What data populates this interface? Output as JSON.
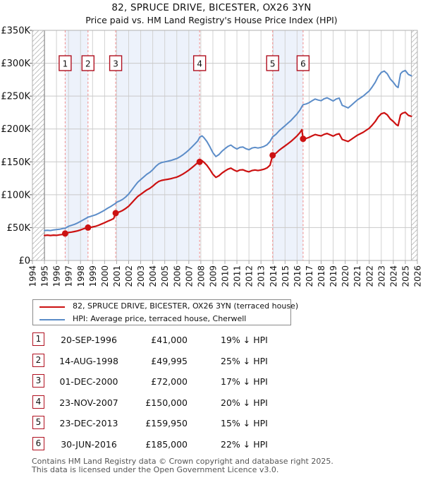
{
  "page": {
    "title": "82, SPRUCE DRIVE, BICESTER, OX26 3YN",
    "subtitle": "Price paid vs. HM Land Registry's House Price Index (HPI)",
    "footer_line1": "Contains HM Land Registry data © Crown copyright and database right 2025.",
    "footer_line2": "This data is licensed under the Open Government Licence v3.0."
  },
  "colors": {
    "price_line": "#cc1111",
    "hpi_line": "#5b8cc8",
    "band": "#edf2fb",
    "grid": "#d2d2d2",
    "grid_h": "#c9c9c9",
    "plot_border": "#b0b0b0",
    "hpi_start_line": "#8a8a8a",
    "hatch_line": "#b8b8b8",
    "sale_dash": "#f08a8a",
    "marker_box_border": "#b01020",
    "axis_text": "#111111",
    "footer_text": "#555555"
  },
  "legend": {
    "items": [
      {
        "label": "82, SPRUCE DRIVE, BICESTER, OX26 3YN (terraced house)",
        "series": "price"
      },
      {
        "label": "HPI: Average price, terraced house, Cherwell",
        "series": "hpi"
      }
    ]
  },
  "sales_table": {
    "rows": [
      {
        "n": "1",
        "date": "20-SEP-1996",
        "price": "£41,000",
        "vs_hpi": "19% ↓ HPI"
      },
      {
        "n": "2",
        "date": "14-AUG-1998",
        "price": "£49,995",
        "vs_hpi": "25% ↓ HPI"
      },
      {
        "n": "3",
        "date": "01-DEC-2000",
        "price": "£72,000",
        "vs_hpi": "17% ↓ HPI"
      },
      {
        "n": "4",
        "date": "23-NOV-2007",
        "price": "£150,000",
        "vs_hpi": "20% ↓ HPI"
      },
      {
        "n": "5",
        "date": "23-DEC-2013",
        "price": "£159,950",
        "vs_hpi": "15% ↓ HPI"
      },
      {
        "n": "6",
        "date": "30-JUN-2016",
        "price": "£185,000",
        "vs_hpi": "22% ↓ HPI"
      }
    ]
  },
  "chart_data": {
    "type": "line",
    "units": "GBP thousands",
    "x_range": [
      1994,
      2026
    ],
    "y_max_k": 350,
    "y_ticks": [
      {
        "label": "£350K",
        "value": 350
      },
      {
        "label": "£300K",
        "value": 300
      },
      {
        "label": "£250K",
        "value": 250
      },
      {
        "label": "£200K",
        "value": 200
      },
      {
        "label": "£150K",
        "value": 150
      },
      {
        "label": "£100K",
        "value": 100
      },
      {
        "label": "£50K",
        "value": 50
      },
      {
        "label": "£0",
        "value": 0
      }
    ],
    "hatch_regions": [
      [
        1994,
        1995
      ],
      [
        2025.5,
        2026
      ]
    ],
    "ownership_bands": [
      [
        1996.72,
        1998.62
      ],
      [
        2000.92,
        2007.9
      ],
      [
        2013.97,
        2016.5
      ]
    ],
    "sales": [
      {
        "n": "1",
        "x": 1996.72,
        "price_k": 41,
        "date": "20-SEP-1996"
      },
      {
        "n": "2",
        "x": 1998.62,
        "price_k": 50,
        "date": "14-AUG-1998"
      },
      {
        "n": "3",
        "x": 2000.92,
        "price_k": 72,
        "date": "01-DEC-2000"
      },
      {
        "n": "4",
        "x": 2007.9,
        "price_k": 150,
        "date": "23-NOV-2007"
      },
      {
        "n": "5",
        "x": 2013.97,
        "price_k": 160,
        "date": "23-DEC-2013"
      },
      {
        "n": "6",
        "x": 2016.5,
        "price_k": 185,
        "date": "30-JUN-2016"
      }
    ],
    "series": [
      {
        "name": "hpi",
        "points": [
          [
            1995.0,
            45.5
          ],
          [
            1995.25,
            46
          ],
          [
            1995.5,
            45.5
          ],
          [
            1995.75,
            46.5
          ],
          [
            1996.0,
            47
          ],
          [
            1996.25,
            47.5
          ],
          [
            1996.5,
            48.5
          ],
          [
            1996.72,
            49
          ],
          [
            1997.0,
            52
          ],
          [
            1997.25,
            53.5
          ],
          [
            1997.5,
            55
          ],
          [
            1997.75,
            57
          ],
          [
            1998.0,
            59.5
          ],
          [
            1998.25,
            62
          ],
          [
            1998.5,
            64.5
          ],
          [
            1998.62,
            66
          ],
          [
            1998.75,
            66.5
          ],
          [
            1999.0,
            68
          ],
          [
            1999.25,
            69.5
          ],
          [
            1999.5,
            71.5
          ],
          [
            1999.75,
            74
          ],
          [
            2000.0,
            76.5
          ],
          [
            2000.25,
            79.5
          ],
          [
            2000.5,
            82
          ],
          [
            2000.75,
            85
          ],
          [
            2000.92,
            87
          ],
          [
            2001.0,
            88.5
          ],
          [
            2001.25,
            90.5
          ],
          [
            2001.5,
            93
          ],
          [
            2001.75,
            96.5
          ],
          [
            2002.0,
            101
          ],
          [
            2002.25,
            107
          ],
          [
            2002.5,
            113
          ],
          [
            2002.75,
            119
          ],
          [
            2003.0,
            123
          ],
          [
            2003.25,
            127
          ],
          [
            2003.5,
            131
          ],
          [
            2003.75,
            134
          ],
          [
            2004.0,
            138
          ],
          [
            2004.25,
            143
          ],
          [
            2004.5,
            147
          ],
          [
            2004.75,
            149
          ],
          [
            2005.0,
            150
          ],
          [
            2005.25,
            151
          ],
          [
            2005.5,
            152
          ],
          [
            2005.75,
            153.5
          ],
          [
            2006.0,
            155
          ],
          [
            2006.25,
            157.5
          ],
          [
            2006.5,
            160.5
          ],
          [
            2006.75,
            164
          ],
          [
            2007.0,
            168
          ],
          [
            2007.25,
            172.5
          ],
          [
            2007.5,
            177
          ],
          [
            2007.75,
            182
          ],
          [
            2007.9,
            187.5
          ],
          [
            2008.1,
            189.5
          ],
          [
            2008.25,
            187
          ],
          [
            2008.5,
            181
          ],
          [
            2008.75,
            173
          ],
          [
            2009.0,
            164
          ],
          [
            2009.25,
            158
          ],
          [
            2009.5,
            161
          ],
          [
            2009.75,
            166
          ],
          [
            2010.0,
            170
          ],
          [
            2010.25,
            173.5
          ],
          [
            2010.5,
            175.5
          ],
          [
            2010.75,
            172
          ],
          [
            2011.0,
            169.5
          ],
          [
            2011.25,
            172
          ],
          [
            2011.5,
            172.5
          ],
          [
            2011.75,
            170
          ],
          [
            2012.0,
            168.5
          ],
          [
            2012.25,
            171
          ],
          [
            2012.5,
            172
          ],
          [
            2012.75,
            171
          ],
          [
            2013.0,
            172
          ],
          [
            2013.25,
            173.5
          ],
          [
            2013.5,
            176
          ],
          [
            2013.75,
            181
          ],
          [
            2013.97,
            188
          ],
          [
            2014.25,
            192
          ],
          [
            2014.5,
            197
          ],
          [
            2014.75,
            201
          ],
          [
            2015.0,
            205
          ],
          [
            2015.25,
            209
          ],
          [
            2015.5,
            213
          ],
          [
            2015.75,
            218
          ],
          [
            2016.0,
            223
          ],
          [
            2016.25,
            229
          ],
          [
            2016.4,
            234
          ],
          [
            2016.5,
            237
          ],
          [
            2016.75,
            238
          ],
          [
            2017.0,
            240
          ],
          [
            2017.25,
            243
          ],
          [
            2017.5,
            245.5
          ],
          [
            2017.75,
            244
          ],
          [
            2018.0,
            243
          ],
          [
            2018.25,
            246
          ],
          [
            2018.5,
            247.5
          ],
          [
            2018.75,
            245
          ],
          [
            2019.0,
            242.5
          ],
          [
            2019.25,
            245.5
          ],
          [
            2019.5,
            247
          ],
          [
            2019.75,
            236
          ],
          [
            2020.0,
            234
          ],
          [
            2020.25,
            232
          ],
          [
            2020.5,
            236
          ],
          [
            2020.75,
            240
          ],
          [
            2021.0,
            244
          ],
          [
            2021.25,
            247
          ],
          [
            2021.5,
            250
          ],
          [
            2021.75,
            254
          ],
          [
            2022.0,
            258
          ],
          [
            2022.25,
            264
          ],
          [
            2022.5,
            271
          ],
          [
            2022.75,
            280
          ],
          [
            2023.0,
            286
          ],
          [
            2023.25,
            288
          ],
          [
            2023.5,
            284
          ],
          [
            2023.75,
            276
          ],
          [
            2024.0,
            271
          ],
          [
            2024.25,
            265
          ],
          [
            2024.4,
            263
          ],
          [
            2024.6,
            284
          ],
          [
            2024.75,
            287
          ],
          [
            2025.0,
            289
          ],
          [
            2025.25,
            283
          ],
          [
            2025.5,
            281
          ]
        ]
      },
      {
        "name": "price",
        "points": [
          [
            1995.0,
            38
          ],
          [
            1995.25,
            38.5
          ],
          [
            1995.5,
            38
          ],
          [
            1995.75,
            38.5
          ],
          [
            1996.0,
            38.2
          ],
          [
            1996.25,
            39
          ],
          [
            1996.5,
            39.5
          ],
          [
            1996.72,
            41
          ],
          [
            1997.0,
            42.5
          ],
          [
            1997.25,
            43.2
          ],
          [
            1997.5,
            44
          ],
          [
            1997.75,
            45
          ],
          [
            1998.0,
            46.5
          ],
          [
            1998.25,
            48.2
          ],
          [
            1998.5,
            49.5
          ],
          [
            1998.62,
            50
          ],
          [
            1998.75,
            49.9
          ],
          [
            1999.0,
            51
          ],
          [
            1999.25,
            52
          ],
          [
            1999.5,
            53.6
          ],
          [
            1999.75,
            55.5
          ],
          [
            2000.0,
            57.4
          ],
          [
            2000.25,
            59.6
          ],
          [
            2000.5,
            61.5
          ],
          [
            2000.75,
            63.8
          ],
          [
            2000.92,
            72
          ],
          [
            2001.25,
            74
          ],
          [
            2001.5,
            76.1
          ],
          [
            2001.75,
            79
          ],
          [
            2002.0,
            82.6
          ],
          [
            2002.25,
            87.5
          ],
          [
            2002.5,
            92.4
          ],
          [
            2002.75,
            97.3
          ],
          [
            2003.0,
            100.6
          ],
          [
            2003.25,
            103.9
          ],
          [
            2003.5,
            107.2
          ],
          [
            2003.75,
            109.6
          ],
          [
            2004.0,
            112.9
          ],
          [
            2004.25,
            117
          ],
          [
            2004.5,
            120.2
          ],
          [
            2004.75,
            121.9
          ],
          [
            2005.0,
            122.7
          ],
          [
            2005.25,
            123.5
          ],
          [
            2005.5,
            124.3
          ],
          [
            2005.75,
            125.6
          ],
          [
            2006.0,
            126.8
          ],
          [
            2006.25,
            128.8
          ],
          [
            2006.5,
            131.3
          ],
          [
            2006.75,
            134.2
          ],
          [
            2007.0,
            137.4
          ],
          [
            2007.25,
            141.1
          ],
          [
            2007.5,
            144.8
          ],
          [
            2007.75,
            148.9
          ],
          [
            2007.9,
            150
          ],
          [
            2008.1,
            151.6
          ],
          [
            2008.25,
            149.6
          ],
          [
            2008.5,
            144.8
          ],
          [
            2008.75,
            138.4
          ],
          [
            2009.0,
            131.2
          ],
          [
            2009.25,
            126.4
          ],
          [
            2009.5,
            128.8
          ],
          [
            2009.75,
            132.8
          ],
          [
            2010.0,
            136
          ],
          [
            2010.25,
            138.8
          ],
          [
            2010.5,
            140.4
          ],
          [
            2010.75,
            137.6
          ],
          [
            2011.0,
            135.6
          ],
          [
            2011.25,
            137.6
          ],
          [
            2011.5,
            138
          ],
          [
            2011.75,
            136
          ],
          [
            2012.0,
            134.8
          ],
          [
            2012.25,
            136.8
          ],
          [
            2012.5,
            137.6
          ],
          [
            2012.75,
            136.8
          ],
          [
            2013.0,
            137.6
          ],
          [
            2013.25,
            138.8
          ],
          [
            2013.5,
            140.8
          ],
          [
            2013.75,
            144.8
          ],
          [
            2013.97,
            160
          ],
          [
            2014.25,
            163.2
          ],
          [
            2014.5,
            167.5
          ],
          [
            2014.75,
            170.9
          ],
          [
            2015.0,
            174.3
          ],
          [
            2015.25,
            177.7
          ],
          [
            2015.5,
            181.1
          ],
          [
            2015.75,
            185.3
          ],
          [
            2016.0,
            189.6
          ],
          [
            2016.25,
            194.7
          ],
          [
            2016.4,
            198.9
          ],
          [
            2016.5,
            185
          ],
          [
            2016.75,
            185.6
          ],
          [
            2017.0,
            187.2
          ],
          [
            2017.25,
            189.5
          ],
          [
            2017.5,
            191.5
          ],
          [
            2017.75,
            190.3
          ],
          [
            2018.0,
            189.5
          ],
          [
            2018.25,
            191.9
          ],
          [
            2018.5,
            193.1
          ],
          [
            2018.75,
            191.1
          ],
          [
            2019.0,
            189.2
          ],
          [
            2019.25,
            191.5
          ],
          [
            2019.5,
            192.7
          ],
          [
            2019.75,
            184.1
          ],
          [
            2020.0,
            182.5
          ],
          [
            2020.25,
            181
          ],
          [
            2020.5,
            184.1
          ],
          [
            2020.75,
            187.2
          ],
          [
            2021.0,
            190.3
          ],
          [
            2021.25,
            192.7
          ],
          [
            2021.5,
            195
          ],
          [
            2021.75,
            198.1
          ],
          [
            2022.0,
            201.2
          ],
          [
            2022.25,
            205.9
          ],
          [
            2022.5,
            211.4
          ],
          [
            2022.75,
            218.4
          ],
          [
            2023.0,
            223.1
          ],
          [
            2023.25,
            224.6
          ],
          [
            2023.5,
            221.5
          ],
          [
            2023.75,
            215.3
          ],
          [
            2024.0,
            211.4
          ],
          [
            2024.25,
            206.7
          ],
          [
            2024.4,
            205.1
          ],
          [
            2024.6,
            221.5
          ],
          [
            2024.75,
            223.9
          ],
          [
            2025.0,
            225.4
          ],
          [
            2025.25,
            220.7
          ],
          [
            2025.5,
            219.2
          ]
        ]
      }
    ]
  }
}
